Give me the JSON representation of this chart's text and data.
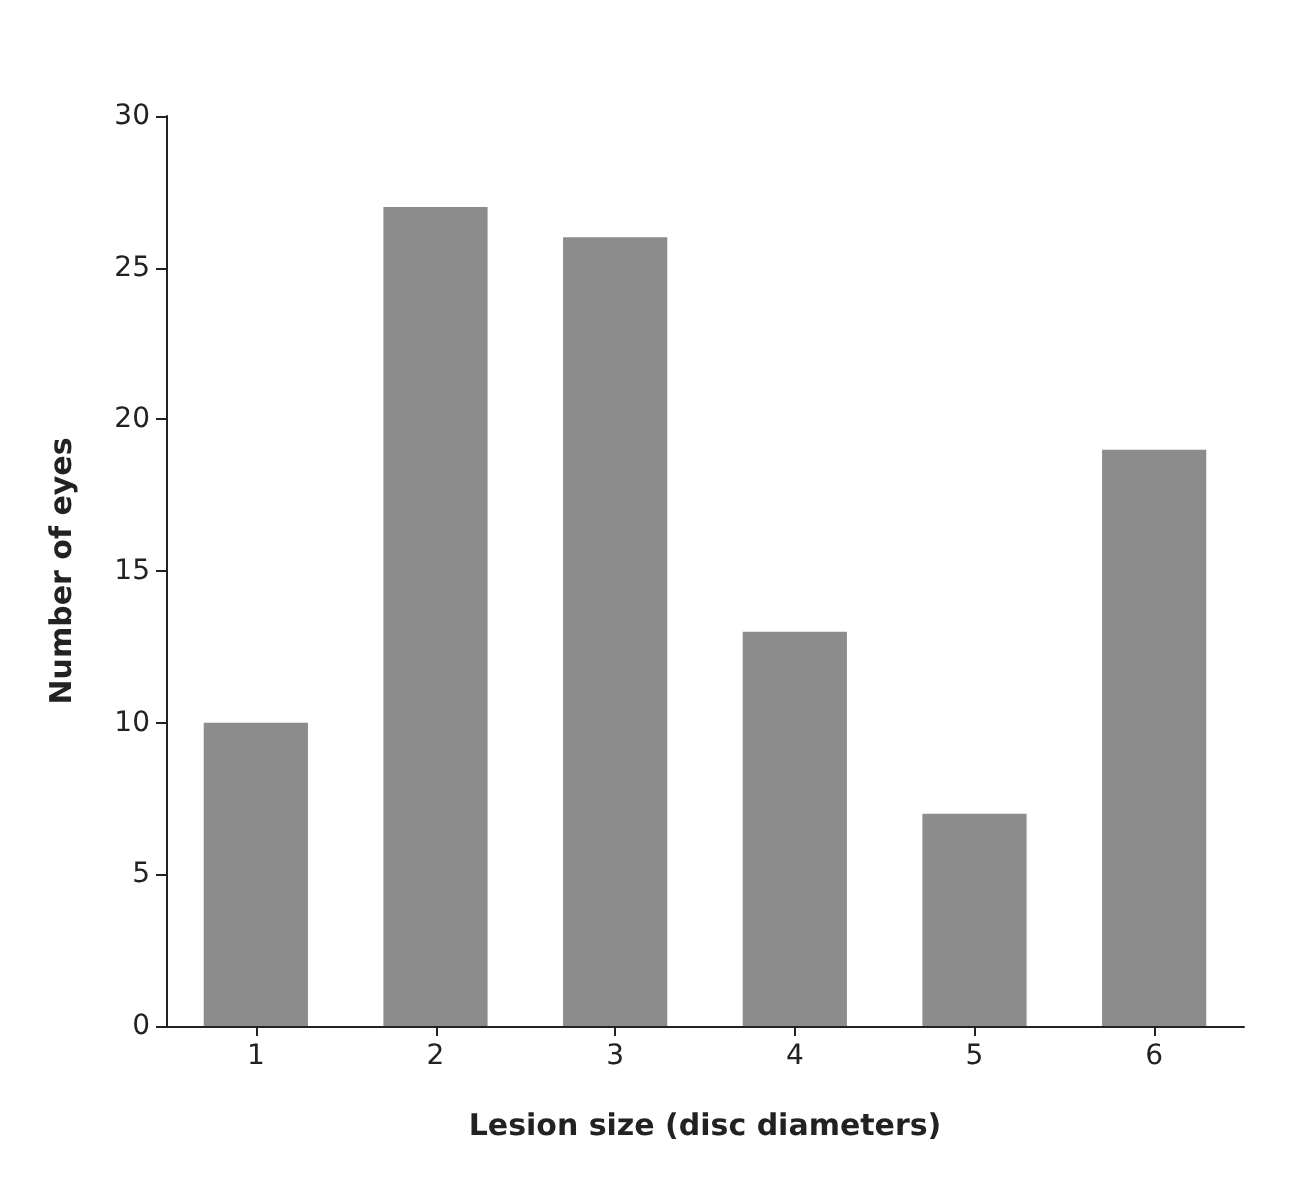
{
  "chart_data": {
    "type": "bar",
    "xlabel": "Lesion size (disc diameters)",
    "ylabel": "Number of eyes",
    "categories": [
      "1",
      "2",
      "3",
      "4",
      "5",
      "6"
    ],
    "values": [
      10,
      27,
      26,
      13,
      7,
      19
    ],
    "color": "#8c8c8c",
    "ylim": [
      0,
      30
    ],
    "yticks": [
      0,
      5,
      10,
      15,
      20,
      25,
      30
    ],
    "grid": false
  }
}
